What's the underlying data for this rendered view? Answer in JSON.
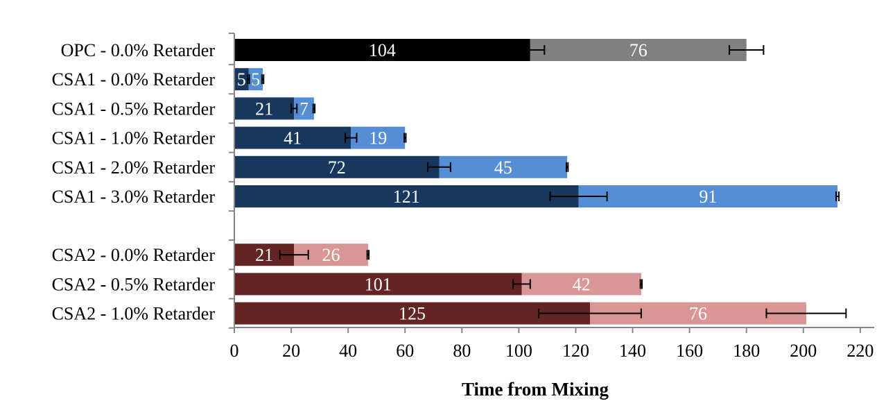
{
  "chart_data": {
    "type": "bar",
    "orientation": "horizontal",
    "stacked": true,
    "title": "",
    "xlabel": "Time from Mixing",
    "ylabel": "",
    "xlim": [
      0,
      220
    ],
    "xticks": [
      0,
      20,
      40,
      60,
      80,
      100,
      120,
      140,
      160,
      180,
      200,
      220
    ],
    "grid": false,
    "legend": "none",
    "rows": [
      {
        "label": "OPC - 0.0% Retarder",
        "group": 0,
        "first": 104,
        "second": 76,
        "first_error": 5,
        "second_error": 6,
        "first_color": "#000000",
        "second_color": "#808080"
      },
      {
        "label": "CSA1 - 0.0% Retarder",
        "group": 0,
        "first": 5,
        "second": 5,
        "first_error": 0,
        "second_error": 0,
        "first_color": "#17375e",
        "second_color": "#558ed5"
      },
      {
        "label": "CSA1 - 0.5% Retarder",
        "group": 0,
        "first": 21,
        "second": 7,
        "first_error": 1,
        "second_error": 0,
        "first_color": "#17375e",
        "second_color": "#558ed5"
      },
      {
        "label": "CSA1 - 1.0% Retarder",
        "group": 0,
        "first": 41,
        "second": 19,
        "first_error": 2,
        "second_error": 0,
        "first_color": "#17375e",
        "second_color": "#558ed5"
      },
      {
        "label": "CSA1 - 2.0% Retarder",
        "group": 0,
        "first": 72,
        "second": 45,
        "first_error": 4,
        "second_error": 0,
        "first_color": "#17375e",
        "second_color": "#558ed5"
      },
      {
        "label": "CSA1 - 3.0% Retarder",
        "group": 0,
        "first": 121,
        "second": 91,
        "first_error": 10,
        "second_error": 0.5,
        "first_color": "#17375e",
        "second_color": "#558ed5"
      },
      {
        "label": "CSA2 - 0.0% Retarder",
        "group": 1,
        "first": 21,
        "second": 26,
        "first_error": 5,
        "second_error": 0,
        "first_color": "#632523",
        "second_color": "#d99694"
      },
      {
        "label": "CSA2 - 0.5% Retarder",
        "group": 1,
        "first": 101,
        "second": 42,
        "first_error": 3,
        "second_error": 0,
        "first_color": "#632523",
        "second_color": "#d99694"
      },
      {
        "label": "CSA2 - 1.0% Retarder",
        "group": 1,
        "first": 125,
        "second": 76,
        "first_error": 18,
        "second_error": 14,
        "first_color": "#632523",
        "second_color": "#d99694"
      }
    ]
  }
}
